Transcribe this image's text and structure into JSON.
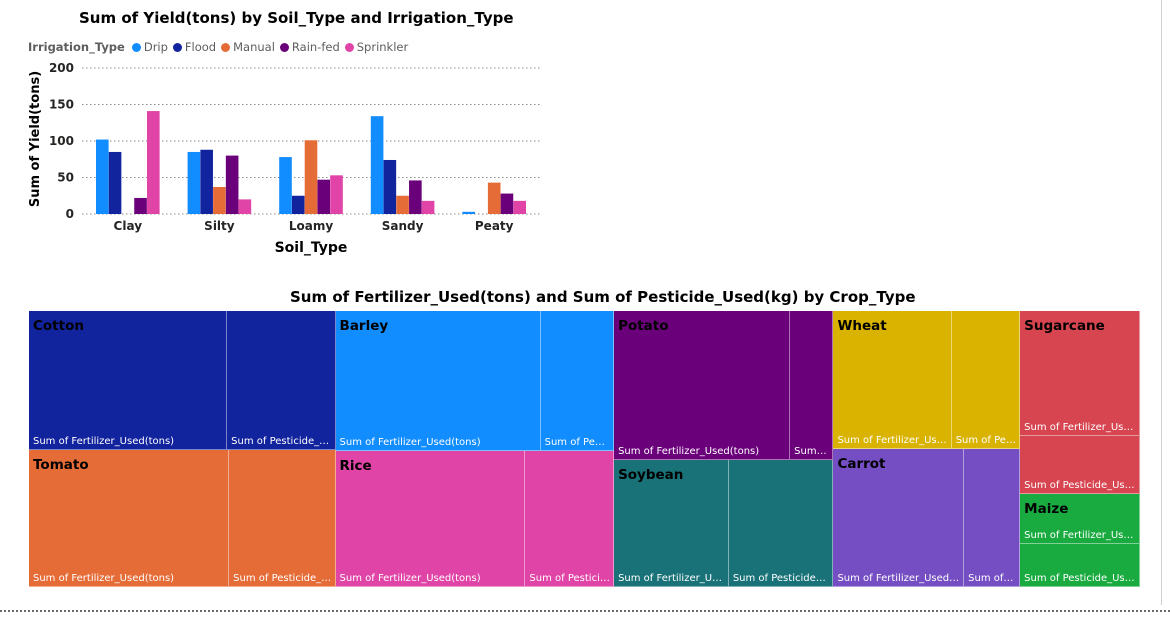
{
  "chart_data": [
    {
      "type": "bar",
      "title": "Sum of Yield(tons) by Soil_Type and Irrigation_Type",
      "xlabel": "Soil_Type",
      "ylabel": "Sum of Yield(tons)",
      "ylim": [
        0,
        200
      ],
      "yticks": [
        "0",
        "50",
        "100",
        "150",
        "200"
      ],
      "grid": true,
      "legend_title": "Irrigation_Type",
      "legend_position": "top-left",
      "categories": [
        "Clay",
        "Silty",
        "Loamy",
        "Sandy",
        "Peaty"
      ],
      "series": [
        {
          "name": "Drip",
          "color": "#118DFF",
          "values": [
            102,
            85,
            78,
            134,
            3
          ]
        },
        {
          "name": "Flood",
          "color": "#12239E",
          "values": [
            85,
            88,
            25,
            74,
            0
          ]
        },
        {
          "name": "Manual",
          "color": "#E66C37",
          "values": [
            0,
            37,
            101,
            25,
            43
          ]
        },
        {
          "name": "Rain-fed",
          "color": "#6B007B",
          "values": [
            22,
            80,
            47,
            46,
            28
          ]
        },
        {
          "name": "Sprinkler",
          "color": "#E044A7",
          "values": [
            141,
            20,
            53,
            18,
            18
          ]
        }
      ]
    },
    {
      "type": "treemap",
      "title": "Sum of Fertilizer_Used(tons) and Sum of Pesticide_Used(kg) by Crop_Type",
      "measure_labels": {
        "fert": "Sum of Fertilizer_Used(tons)",
        "pest": "Sum of Pesticide_Used(kg)"
      },
      "crops": [
        {
          "name": "Cotton",
          "color": "#12239E",
          "fert": 64,
          "pest": 35
        },
        {
          "name": "Tomato",
          "color": "#E66C37",
          "fert": 64,
          "pest": 34
        },
        {
          "name": "Barley",
          "color": "#118DFF",
          "fert": 67,
          "pest": 24
        },
        {
          "name": "Rice",
          "color": "#E044A7",
          "fert": 60,
          "pest": 28
        },
        {
          "name": "Potato",
          "color": "#6B007B",
          "fert": 61,
          "pest": 15
        },
        {
          "name": "Soybean",
          "color": "#197278",
          "fert": 34,
          "pest": 31
        },
        {
          "name": "Wheat",
          "color": "#D9B300",
          "fert": 38,
          "pest": 22
        },
        {
          "name": "Carrot",
          "color": "#744EC2",
          "fert": 42,
          "pest": 18
        },
        {
          "name": "Sugarcane",
          "color": "#D64550",
          "fert": 35,
          "pest": 16
        },
        {
          "name": "Maize",
          "color": "#1AAB40",
          "fert": 14,
          "pest": 12
        }
      ]
    }
  ]
}
